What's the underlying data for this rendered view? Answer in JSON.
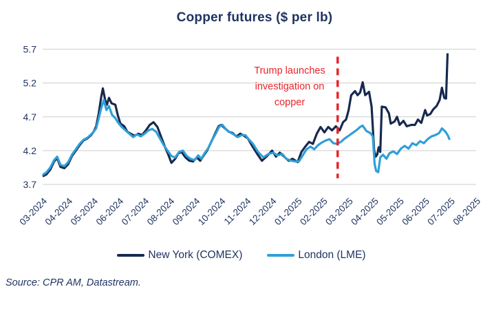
{
  "annotation": {
    "line1": "Trump launches",
    "line2": "investigation on",
    "line3": "copper"
  },
  "source_note": "Source: CPR AM, Datastream.",
  "colors": {
    "navy_text": "#1f3361",
    "comex_line": "#17294e",
    "lme_line": "#2f9fd8",
    "event_red": "#e8242b",
    "gridline": "#d6d6d6",
    "background": "#ffffff"
  },
  "chart_data": {
    "type": "line",
    "title": "Copper futures ($ per lb)",
    "xlabel": "",
    "ylabel": "",
    "ylim": [
      3.7,
      5.7
    ],
    "yticks": [
      5.7,
      5.2,
      4.7,
      4.2,
      3.7
    ],
    "grid": true,
    "legend_position": "bottom",
    "xticklabels": [
      "03-2024",
      "04-2024",
      "05-2024",
      "06-2024",
      "07-2024",
      "08-2024",
      "09-2024",
      "10-2024",
      "11-2024",
      "12-2024",
      "01-2025",
      "02-2025",
      "03-2025",
      "04-2025",
      "05-2025",
      "06-2025",
      "07-2025",
      "08-2025"
    ],
    "x_unit": "months from 03-2024 tick (1 unit = 1 month)",
    "event_line": {
      "label": "Trump launches investigation on copper",
      "x_months_from_mar_2024": 11.57,
      "style": "dashed",
      "color": "#e8242b",
      "span_values": [
        3.78,
        5.6
      ]
    },
    "series": [
      {
        "name": "New York (COMEX)",
        "color": "#17294e",
        "points": [
          [
            0.0,
            3.82
          ],
          [
            0.15,
            3.85
          ],
          [
            0.3,
            3.92
          ],
          [
            0.45,
            4.04
          ],
          [
            0.57,
            4.09
          ],
          [
            0.7,
            3.96
          ],
          [
            0.85,
            3.94
          ],
          [
            1.0,
            4.0
          ],
          [
            1.15,
            4.12
          ],
          [
            1.3,
            4.2
          ],
          [
            1.45,
            4.28
          ],
          [
            1.6,
            4.35
          ],
          [
            1.75,
            4.38
          ],
          [
            1.9,
            4.43
          ],
          [
            2.0,
            4.48
          ],
          [
            2.1,
            4.56
          ],
          [
            2.2,
            4.75
          ],
          [
            2.3,
            5.0
          ],
          [
            2.36,
            5.12
          ],
          [
            2.45,
            4.95
          ],
          [
            2.52,
            4.88
          ],
          [
            2.6,
            4.98
          ],
          [
            2.7,
            4.9
          ],
          [
            2.85,
            4.88
          ],
          [
            2.95,
            4.72
          ],
          [
            3.05,
            4.6
          ],
          [
            3.2,
            4.56
          ],
          [
            3.32,
            4.48
          ],
          [
            3.45,
            4.45
          ],
          [
            3.6,
            4.42
          ],
          [
            3.75,
            4.45
          ],
          [
            3.9,
            4.43
          ],
          [
            4.05,
            4.5
          ],
          [
            4.2,
            4.58
          ],
          [
            4.35,
            4.62
          ],
          [
            4.5,
            4.55
          ],
          [
            4.65,
            4.4
          ],
          [
            4.8,
            4.25
          ],
          [
            4.92,
            4.15
          ],
          [
            5.05,
            4.02
          ],
          [
            5.2,
            4.08
          ],
          [
            5.32,
            4.16
          ],
          [
            5.45,
            4.18
          ],
          [
            5.6,
            4.1
          ],
          [
            5.75,
            4.05
          ],
          [
            5.9,
            4.04
          ],
          [
            6.05,
            4.1
          ],
          [
            6.18,
            4.05
          ],
          [
            6.3,
            4.12
          ],
          [
            6.45,
            4.2
          ],
          [
            6.6,
            4.32
          ],
          [
            6.75,
            4.44
          ],
          [
            6.9,
            4.56
          ],
          [
            7.0,
            4.58
          ],
          [
            7.15,
            4.53
          ],
          [
            7.3,
            4.48
          ],
          [
            7.45,
            4.46
          ],
          [
            7.6,
            4.41
          ],
          [
            7.75,
            4.45
          ],
          [
            7.9,
            4.42
          ],
          [
            8.05,
            4.38
          ],
          [
            8.2,
            4.28
          ],
          [
            8.4,
            4.16
          ],
          [
            8.6,
            4.05
          ],
          [
            8.8,
            4.12
          ],
          [
            9.0,
            4.2
          ],
          [
            9.15,
            4.11
          ],
          [
            9.3,
            4.17
          ],
          [
            9.5,
            4.1
          ],
          [
            9.65,
            4.05
          ],
          [
            9.8,
            4.08
          ],
          [
            10.0,
            4.03
          ],
          [
            10.15,
            4.18
          ],
          [
            10.3,
            4.26
          ],
          [
            10.45,
            4.33
          ],
          [
            10.6,
            4.3
          ],
          [
            10.75,
            4.45
          ],
          [
            10.9,
            4.55
          ],
          [
            11.05,
            4.47
          ],
          [
            11.2,
            4.55
          ],
          [
            11.35,
            4.5
          ],
          [
            11.5,
            4.56
          ],
          [
            11.65,
            4.5
          ],
          [
            11.78,
            4.62
          ],
          [
            11.9,
            4.66
          ],
          [
            12.0,
            4.8
          ],
          [
            12.1,
            5.02
          ],
          [
            12.25,
            5.08
          ],
          [
            12.35,
            5.02
          ],
          [
            12.45,
            5.06
          ],
          [
            12.55,
            5.21
          ],
          [
            12.65,
            5.02
          ],
          [
            12.8,
            5.07
          ],
          [
            12.9,
            4.85
          ],
          [
            13.0,
            4.2
          ],
          [
            13.06,
            4.11
          ],
          [
            13.12,
            4.14
          ],
          [
            13.18,
            4.25
          ],
          [
            13.24,
            4.18
          ],
          [
            13.3,
            4.85
          ],
          [
            13.45,
            4.84
          ],
          [
            13.58,
            4.75
          ],
          [
            13.65,
            4.6
          ],
          [
            13.8,
            4.63
          ],
          [
            13.9,
            4.7
          ],
          [
            14.0,
            4.58
          ],
          [
            14.15,
            4.64
          ],
          [
            14.28,
            4.56
          ],
          [
            14.45,
            4.58
          ],
          [
            14.6,
            4.58
          ],
          [
            14.72,
            4.66
          ],
          [
            14.85,
            4.61
          ],
          [
            15.0,
            4.8
          ],
          [
            15.08,
            4.72
          ],
          [
            15.2,
            4.74
          ],
          [
            15.32,
            4.81
          ],
          [
            15.45,
            4.86
          ],
          [
            15.57,
            4.95
          ],
          [
            15.66,
            5.13
          ],
          [
            15.75,
            4.98
          ],
          [
            15.82,
            4.97
          ],
          [
            15.88,
            5.64
          ]
        ]
      },
      {
        "name": "London (LME)",
        "color": "#2f9fd8",
        "points": [
          [
            0.0,
            3.84
          ],
          [
            0.15,
            3.88
          ],
          [
            0.3,
            3.95
          ],
          [
            0.45,
            4.06
          ],
          [
            0.57,
            4.11
          ],
          [
            0.7,
            3.99
          ],
          [
            0.85,
            3.97
          ],
          [
            1.0,
            4.03
          ],
          [
            1.15,
            4.14
          ],
          [
            1.3,
            4.22
          ],
          [
            1.45,
            4.3
          ],
          [
            1.6,
            4.36
          ],
          [
            1.75,
            4.39
          ],
          [
            1.9,
            4.44
          ],
          [
            2.0,
            4.48
          ],
          [
            2.1,
            4.53
          ],
          [
            2.2,
            4.68
          ],
          [
            2.3,
            4.83
          ],
          [
            2.4,
            4.95
          ],
          [
            2.5,
            4.8
          ],
          [
            2.6,
            4.86
          ],
          [
            2.72,
            4.73
          ],
          [
            2.85,
            4.68
          ],
          [
            2.95,
            4.62
          ],
          [
            3.1,
            4.55
          ],
          [
            3.25,
            4.5
          ],
          [
            3.4,
            4.45
          ],
          [
            3.55,
            4.4
          ],
          [
            3.7,
            4.44
          ],
          [
            3.85,
            4.41
          ],
          [
            4.0,
            4.45
          ],
          [
            4.15,
            4.5
          ],
          [
            4.3,
            4.52
          ],
          [
            4.45,
            4.48
          ],
          [
            4.6,
            4.38
          ],
          [
            4.75,
            4.28
          ],
          [
            4.9,
            4.2
          ],
          [
            5.05,
            4.12
          ],
          [
            5.2,
            4.1
          ],
          [
            5.35,
            4.18
          ],
          [
            5.5,
            4.2
          ],
          [
            5.65,
            4.12
          ],
          [
            5.8,
            4.08
          ],
          [
            5.95,
            4.06
          ],
          [
            6.1,
            4.13
          ],
          [
            6.22,
            4.08
          ],
          [
            6.35,
            4.16
          ],
          [
            6.5,
            4.24
          ],
          [
            6.65,
            4.36
          ],
          [
            6.8,
            4.46
          ],
          [
            6.92,
            4.55
          ],
          [
            7.05,
            4.58
          ],
          [
            7.2,
            4.51
          ],
          [
            7.35,
            4.47
          ],
          [
            7.5,
            4.44
          ],
          [
            7.65,
            4.4
          ],
          [
            7.8,
            4.43
          ],
          [
            7.95,
            4.43
          ],
          [
            8.1,
            4.36
          ],
          [
            8.25,
            4.3
          ],
          [
            8.45,
            4.18
          ],
          [
            8.65,
            4.1
          ],
          [
            8.85,
            4.15
          ],
          [
            9.05,
            4.17
          ],
          [
            9.2,
            4.13
          ],
          [
            9.4,
            4.15
          ],
          [
            9.55,
            4.08
          ],
          [
            9.75,
            4.05
          ],
          [
            9.9,
            4.04
          ],
          [
            10.05,
            4.04
          ],
          [
            10.2,
            4.13
          ],
          [
            10.35,
            4.22
          ],
          [
            10.5,
            4.26
          ],
          [
            10.65,
            4.22
          ],
          [
            10.8,
            4.28
          ],
          [
            10.95,
            4.32
          ],
          [
            11.1,
            4.35
          ],
          [
            11.25,
            4.37
          ],
          [
            11.4,
            4.31
          ],
          [
            11.55,
            4.3
          ],
          [
            11.7,
            4.33
          ],
          [
            11.85,
            4.38
          ],
          [
            12.0,
            4.42
          ],
          [
            12.15,
            4.46
          ],
          [
            12.3,
            4.5
          ],
          [
            12.45,
            4.55
          ],
          [
            12.55,
            4.57
          ],
          [
            12.7,
            4.49
          ],
          [
            12.85,
            4.46
          ],
          [
            12.95,
            4.41
          ],
          [
            13.02,
            4.0
          ],
          [
            13.08,
            3.9
          ],
          [
            13.16,
            3.88
          ],
          [
            13.24,
            4.1
          ],
          [
            13.35,
            4.14
          ],
          [
            13.48,
            4.08
          ],
          [
            13.6,
            4.16
          ],
          [
            13.75,
            4.19
          ],
          [
            13.9,
            4.15
          ],
          [
            14.05,
            4.23
          ],
          [
            14.2,
            4.27
          ],
          [
            14.35,
            4.23
          ],
          [
            14.5,
            4.31
          ],
          [
            14.65,
            4.28
          ],
          [
            14.8,
            4.34
          ],
          [
            14.95,
            4.31
          ],
          [
            15.1,
            4.37
          ],
          [
            15.25,
            4.41
          ],
          [
            15.4,
            4.43
          ],
          [
            15.55,
            4.46
          ],
          [
            15.66,
            4.53
          ],
          [
            15.8,
            4.48
          ],
          [
            15.9,
            4.42
          ],
          [
            15.96,
            4.36
          ]
        ]
      }
    ]
  }
}
